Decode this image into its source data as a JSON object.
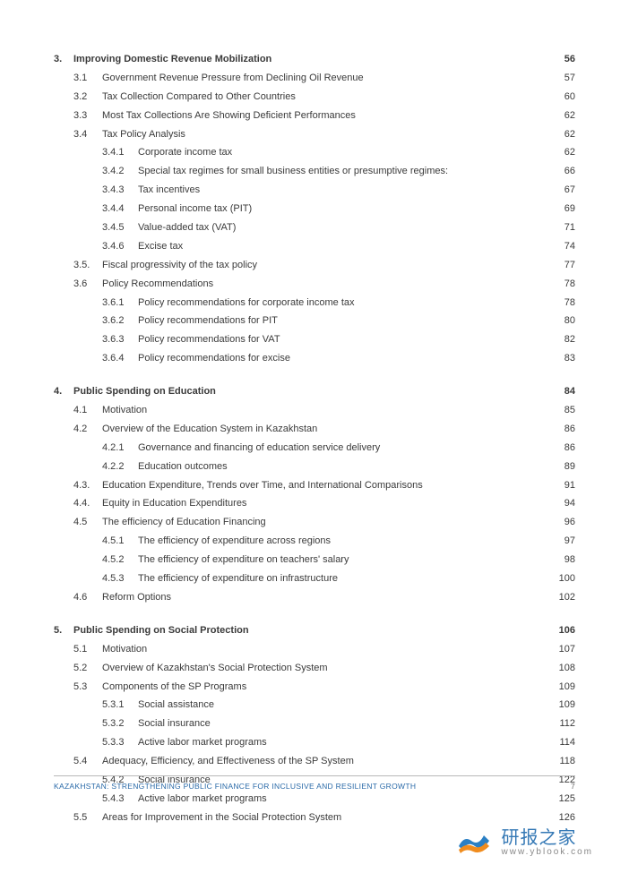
{
  "chapters": [
    {
      "num": "3.",
      "title": "Improving Domestic Revenue Mobilization",
      "page": "56",
      "sections": [
        {
          "num": "3.1",
          "title": "Government Revenue Pressure from Declining Oil Revenue",
          "page": "57"
        },
        {
          "num": "3.2",
          "title": "Tax Collection Compared to Other Countries",
          "page": "60"
        },
        {
          "num": "3.3",
          "title": "Most Tax Collections Are Showing Deficient Performances",
          "page": "62"
        },
        {
          "num": "3.4",
          "title": "Tax Policy Analysis",
          "page": "62",
          "subs": [
            {
              "num": "3.4.1",
              "title": "Corporate income tax",
              "page": "62"
            },
            {
              "num": "3.4.2",
              "title": "Special tax regimes for small business entities or presumptive regimes:",
              "page": "66"
            },
            {
              "num": "3.4.3",
              "title": "Tax incentives",
              "page": "67"
            },
            {
              "num": "3.4.4",
              "title": "Personal income tax (PIT)",
              "page": "69"
            },
            {
              "num": "3.4.5",
              "title": "Value-added tax (VAT)",
              "page": "71"
            },
            {
              "num": "3.4.6",
              "title": "Excise tax",
              "page": "74"
            }
          ]
        },
        {
          "num": "3.5.",
          "title": "Fiscal progressivity of the tax policy",
          "page": "77"
        },
        {
          "num": "3.6",
          "title": "Policy Recommendations",
          "page": "78",
          "subs": [
            {
              "num": "3.6.1",
              "title": "Policy recommendations for corporate income tax",
              "page": "78"
            },
            {
              "num": "3.6.2",
              "title": "Policy recommendations for PIT",
              "page": "80"
            },
            {
              "num": "3.6.3",
              "title": "Policy recommendations for VAT",
              "page": "82"
            },
            {
              "num": "3.6.4",
              "title": "Policy recommendations for excise",
              "page": "83"
            }
          ]
        }
      ]
    },
    {
      "num": "4.",
      "title": "Public Spending on Education",
      "page": "84",
      "sections": [
        {
          "num": "4.1",
          "title": "Motivation",
          "page": "85"
        },
        {
          "num": "4.2",
          "title": "Overview of the Education System in Kazakhstan",
          "page": "86",
          "subs": [
            {
              "num": "4.2.1",
              "title": "Governance and financing of education service delivery",
              "page": "86"
            },
            {
              "num": "4.2.2",
              "title": "Education outcomes",
              "page": "89"
            }
          ]
        },
        {
          "num": "4.3.",
          "title": "Education Expenditure, Trends over Time, and International Comparisons",
          "page": "91"
        },
        {
          "num": "4.4.",
          "title": "Equity in Education Expenditures",
          "page": "94"
        },
        {
          "num": "4.5",
          "title": "The efficiency of Education Financing",
          "page": "96",
          "subs": [
            {
              "num": "4.5.1",
              "title": "The efficiency of expenditure across regions",
              "page": "97"
            },
            {
              "num": "4.5.2",
              "title": "The efficiency of expenditure on teachers' salary",
              "page": "98"
            },
            {
              "num": "4.5.3",
              "title": "The efficiency of expenditure on infrastructure",
              "page": "100"
            }
          ]
        },
        {
          "num": "4.6",
          "title": "Reform Options",
          "page": "102"
        }
      ]
    },
    {
      "num": "5.",
      "title": "Public Spending on Social Protection",
      "page": "106",
      "sections": [
        {
          "num": "5.1",
          "title": "Motivation",
          "page": "107"
        },
        {
          "num": "5.2",
          "title": "Overview of Kazakhstan's Social Protection System",
          "page": "108"
        },
        {
          "num": "5.3",
          "title": "Components of the SP Programs",
          "page": "109",
          "subs": [
            {
              "num": "5.3.1",
              "title": "Social assistance",
              "page": "109"
            },
            {
              "num": "5.3.2",
              "title": "Social insurance",
              "page": "112"
            },
            {
              "num": "5.3.3",
              "title": "Active labor market programs",
              "page": "114"
            }
          ]
        },
        {
          "num": "5.4",
          "title": "Adequacy, Efficiency, and Effectiveness of the SP System",
          "page": "118",
          "subs": [
            {
              "num": "5.4.2",
              "title": "Social insurance",
              "page": "122"
            },
            {
              "num": "5.4.3",
              "title": "Active labor market programs",
              "page": "125"
            }
          ]
        },
        {
          "num": "5.5",
          "title": "Areas for Improvement in the Social Protection System",
          "page": "126"
        }
      ]
    }
  ],
  "footer": {
    "title": "KAZAKHSTAN: STRENGTHENING PUBLIC FINANCE FOR INCLUSIVE AND RESILIENT GROWTH",
    "page": "7"
  },
  "watermark": {
    "main": "研报之家",
    "sub": "www.yblook.com"
  },
  "colors": {
    "text": "#3a3a3a",
    "footer_title": "#2a6aa8",
    "rule": "#b8b8b8",
    "wm": "#3478b5"
  }
}
